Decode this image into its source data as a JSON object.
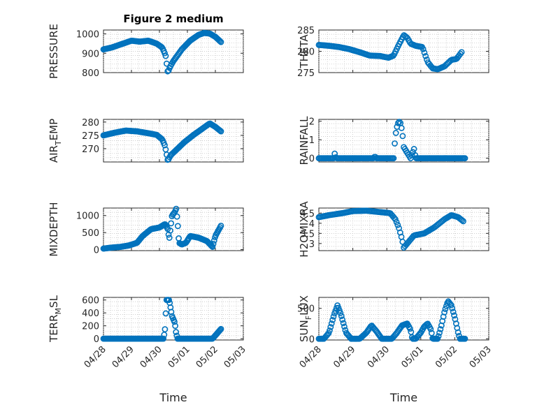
{
  "figure_title": "Figure 2 medium",
  "x_axis_label": "Time",
  "x_tick_labels": [
    "04/28",
    "04/29",
    "04/30",
    "05/01",
    "05/02",
    "05/03"
  ],
  "marker_color": "#0072bd",
  "chart_data": [
    {
      "type": "scatter",
      "id": "pressure",
      "title": "Figure 2 medium",
      "ylabel": "PRESSURE",
      "ylim": [
        800,
        1020
      ],
      "yticks": [
        {
          "v": 800,
          "t": "800"
        },
        {
          "v": 900,
          "t": "900"
        },
        {
          "v": 1000,
          "t": "1000"
        }
      ],
      "xlim": [
        0,
        5
      ],
      "xlabel": "",
      "show_xticklabels": false,
      "grid": true,
      "anchors": [
        [
          0.0,
          920
        ],
        [
          0.3,
          930
        ],
        [
          0.6,
          945
        ],
        [
          1.0,
          965
        ],
        [
          1.3,
          960
        ],
        [
          1.6,
          965
        ],
        [
          1.9,
          950
        ],
        [
          2.1,
          930
        ],
        [
          2.22,
          890
        ],
        [
          2.3,
          800
        ],
        [
          2.38,
          830
        ],
        [
          2.5,
          860
        ],
        [
          2.8,
          920
        ],
        [
          3.1,
          965
        ],
        [
          3.4,
          995
        ],
        [
          3.6,
          1005
        ],
        [
          3.8,
          1002
        ],
        [
          4.0,
          985
        ],
        [
          4.2,
          958
        ]
      ],
      "n": 120
    },
    {
      "type": "scatter",
      "id": "theta",
      "title": "",
      "ylabel": "THETA",
      "ylim": [
        275,
        285
      ],
      "yticks": [
        {
          "v": 275,
          "t": "275"
        },
        {
          "v": 280,
          "t": "280"
        },
        {
          "v": 285,
          "t": "285"
        }
      ],
      "xlim": [
        0,
        5
      ],
      "xlabel": "",
      "show_xticklabels": false,
      "grid": true,
      "anchors": [
        [
          0.0,
          281.5
        ],
        [
          0.3,
          281.3
        ],
        [
          0.6,
          281.0
        ],
        [
          0.9,
          280.5
        ],
        [
          1.2,
          279.8
        ],
        [
          1.5,
          279.0
        ],
        [
          1.8,
          278.9
        ],
        [
          2.05,
          278.5
        ],
        [
          2.2,
          279.0
        ],
        [
          2.35,
          281.5
        ],
        [
          2.5,
          283.8
        ],
        [
          2.6,
          283.2
        ],
        [
          2.7,
          281.8
        ],
        [
          2.85,
          281.3
        ],
        [
          3.05,
          281.0
        ],
        [
          3.2,
          277.5
        ],
        [
          3.35,
          276.0
        ],
        [
          3.5,
          275.8
        ],
        [
          3.7,
          276.5
        ],
        [
          3.9,
          278.0
        ],
        [
          4.05,
          278.2
        ],
        [
          4.2,
          279.8
        ]
      ],
      "n": 120
    },
    {
      "type": "scatter",
      "id": "air_temp",
      "title": "",
      "ylabel": "AIR",
      "ylabel_sub": "T",
      "ylabel_rest": "EMP",
      "ylim": [
        265,
        281
      ],
      "yticks": [
        {
          "v": 270,
          "t": "270"
        },
        {
          "v": 275,
          "t": "275"
        },
        {
          "v": 280,
          "t": "280"
        }
      ],
      "xlim": [
        0,
        5
      ],
      "xlabel": "",
      "show_xticklabels": false,
      "grid": true,
      "anchors": [
        [
          0.0,
          275.0
        ],
        [
          0.4,
          276.0
        ],
        [
          0.8,
          276.8
        ],
        [
          1.2,
          276.5
        ],
        [
          1.6,
          275.8
        ],
        [
          1.9,
          275.2
        ],
        [
          2.1,
          273.5
        ],
        [
          2.2,
          271.0
        ],
        [
          2.3,
          265.5
        ],
        [
          2.4,
          267.5
        ],
        [
          2.6,
          269.5
        ],
        [
          2.9,
          272.5
        ],
        [
          3.2,
          275.0
        ],
        [
          3.4,
          276.5
        ],
        [
          3.6,
          278.0
        ],
        [
          3.8,
          279.5
        ],
        [
          4.0,
          278.2
        ],
        [
          4.2,
          276.5
        ]
      ],
      "n": 120
    },
    {
      "type": "scatter",
      "id": "rainfall",
      "title": "",
      "ylabel": "RAINFALL",
      "ylim": [
        -0.2,
        2.1
      ],
      "yticks": [
        {
          "v": 0,
          "t": "0"
        },
        {
          "v": 1,
          "t": "1"
        },
        {
          "v": 2,
          "t": "2"
        }
      ],
      "xlim": [
        0,
        5
      ],
      "xlabel": "",
      "show_xticklabels": false,
      "grid": true,
      "anchors": [
        [
          0.0,
          0
        ],
        [
          0.45,
          0
        ],
        [
          0.47,
          0.3
        ],
        [
          0.5,
          0.05
        ],
        [
          0.53,
          0
        ],
        [
          1.6,
          0
        ],
        [
          1.65,
          0.1
        ],
        [
          1.7,
          0
        ],
        [
          2.2,
          0
        ],
        [
          2.25,
          1.2
        ],
        [
          2.3,
          1.7
        ],
        [
          2.35,
          2.0
        ],
        [
          2.4,
          1.9
        ],
        [
          2.45,
          1.5
        ],
        [
          2.5,
          0.6
        ],
        [
          2.6,
          0.3
        ],
        [
          2.7,
          0
        ],
        [
          2.8,
          0.5
        ],
        [
          2.85,
          0
        ],
        [
          4.3,
          0
        ]
      ],
      "n": 130
    },
    {
      "type": "scatter",
      "id": "mixdepth",
      "title": "",
      "ylabel": "MIXDEPTH",
      "ylim": [
        -30,
        1220
      ],
      "yticks": [
        {
          "v": 0,
          "t": "0"
        },
        {
          "v": 500,
          "t": "500"
        },
        {
          "v": 1000,
          "t": "1000"
        }
      ],
      "xlim": [
        0,
        5
      ],
      "xlabel": "",
      "show_xticklabels": false,
      "grid": true,
      "anchors": [
        [
          0.0,
          30
        ],
        [
          0.3,
          60
        ],
        [
          0.6,
          80
        ],
        [
          0.9,
          120
        ],
        [
          1.2,
          200
        ],
        [
          1.4,
          400
        ],
        [
          1.7,
          600
        ],
        [
          2.0,
          650
        ],
        [
          2.2,
          750
        ],
        [
          2.3,
          600
        ],
        [
          2.35,
          300
        ],
        [
          2.45,
          1000
        ],
        [
          2.55,
          1100
        ],
        [
          2.6,
          1200
        ],
        [
          2.65,
          800
        ],
        [
          2.7,
          200
        ],
        [
          2.8,
          150
        ],
        [
          2.95,
          200
        ],
        [
          3.1,
          400
        ],
        [
          3.4,
          350
        ],
        [
          3.7,
          250
        ],
        [
          3.85,
          120
        ],
        [
          3.9,
          80
        ],
        [
          4.0,
          400
        ],
        [
          4.1,
          550
        ],
        [
          4.2,
          700
        ]
      ],
      "n": 140
    },
    {
      "type": "scatter",
      "id": "h2omixra",
      "title": "",
      "ylabel": "H2OMIXRA",
      "ylim": [
        2.65,
        4.75
      ],
      "yticks": [
        {
          "v": 3,
          "t": "3"
        },
        {
          "v": 3.5,
          "t": "3.5"
        },
        {
          "v": 4,
          "t": "4"
        },
        {
          "v": 4.5,
          "t": "4.5"
        }
      ],
      "xlim": [
        0,
        5
      ],
      "xlabel": "",
      "show_xticklabels": false,
      "grid": true,
      "anchors": [
        [
          0.0,
          4.3
        ],
        [
          0.3,
          4.4
        ],
        [
          0.7,
          4.5
        ],
        [
          1.0,
          4.6
        ],
        [
          1.4,
          4.62
        ],
        [
          1.8,
          4.55
        ],
        [
          2.1,
          4.5
        ],
        [
          2.25,
          4.2
        ],
        [
          2.35,
          3.8
        ],
        [
          2.45,
          3.2
        ],
        [
          2.5,
          2.8
        ],
        [
          2.6,
          3.0
        ],
        [
          2.8,
          3.4
        ],
        [
          3.1,
          3.5
        ],
        [
          3.4,
          3.8
        ],
        [
          3.7,
          4.2
        ],
        [
          3.9,
          4.4
        ],
        [
          4.1,
          4.3
        ],
        [
          4.25,
          4.1
        ]
      ],
      "n": 120
    },
    {
      "type": "scatter",
      "id": "terr_msl",
      "title": "",
      "ylabel": "TERR",
      "ylabel_sub": "M",
      "ylabel_rest": "SL",
      "ylim": [
        -20,
        640
      ],
      "yticks": [
        {
          "v": 0,
          "t": "0"
        },
        {
          "v": 200,
          "t": "200"
        },
        {
          "v": 400,
          "t": "400"
        },
        {
          "v": 600,
          "t": "600"
        }
      ],
      "xlim": [
        0,
        5
      ],
      "xlabel": "Time",
      "show_xticklabels": true,
      "grid": true,
      "anchors": [
        [
          0.0,
          0
        ],
        [
          2.15,
          0
        ],
        [
          2.2,
          150
        ],
        [
          2.25,
          600
        ],
        [
          2.35,
          600
        ],
        [
          2.45,
          350
        ],
        [
          2.55,
          250
        ],
        [
          2.6,
          80
        ],
        [
          2.65,
          0
        ],
        [
          3.9,
          0
        ],
        [
          4.0,
          50
        ],
        [
          4.1,
          100
        ],
        [
          4.2,
          150
        ]
      ],
      "n": 150
    },
    {
      "type": "scatter",
      "id": "sun_flux",
      "title": "",
      "ylabel": "SUN",
      "ylabel_sub": "F",
      "ylabel_rest": "LUX",
      "ylim": [
        -20,
        680
      ],
      "yticks": [
        {
          "v": 0,
          "t": "0"
        },
        {
          "v": 500,
          "t": "500"
        }
      ],
      "xlim": [
        0,
        5
      ],
      "xlabel": "Time",
      "show_xticklabels": true,
      "grid": true,
      "anchors": [
        [
          0.0,
          0
        ],
        [
          0.15,
          0
        ],
        [
          0.3,
          100
        ],
        [
          0.45,
          400
        ],
        [
          0.55,
          550
        ],
        [
          0.65,
          400
        ],
        [
          0.8,
          100
        ],
        [
          0.95,
          0
        ],
        [
          1.2,
          0
        ],
        [
          1.4,
          100
        ],
        [
          1.55,
          220
        ],
        [
          1.7,
          120
        ],
        [
          1.85,
          0
        ],
        [
          2.15,
          0
        ],
        [
          2.3,
          100
        ],
        [
          2.45,
          220
        ],
        [
          2.6,
          250
        ],
        [
          2.7,
          150
        ],
        [
          2.75,
          0
        ],
        [
          2.85,
          0
        ],
        [
          3.0,
          100
        ],
        [
          3.1,
          200
        ],
        [
          3.2,
          250
        ],
        [
          3.3,
          150
        ],
        [
          3.35,
          0
        ],
        [
          3.5,
          0
        ],
        [
          3.6,
          200
        ],
        [
          3.7,
          450
        ],
        [
          3.8,
          620
        ],
        [
          3.9,
          550
        ],
        [
          4.0,
          350
        ],
        [
          4.1,
          100
        ],
        [
          4.15,
          0
        ],
        [
          4.3,
          0
        ]
      ],
      "n": 150
    }
  ]
}
